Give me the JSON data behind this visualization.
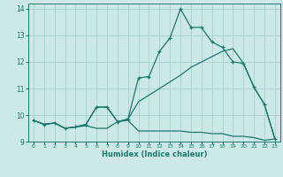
{
  "title": "",
  "xlabel": "Humidex (Indice chaleur)",
  "bg_color": "#cce8e8",
  "grid_color": "#aacfcf",
  "line_color": "#1a7a6e",
  "xlim": [
    -0.5,
    23.5
  ],
  "ylim": [
    9.0,
    14.2
  ],
  "xticks": [
    0,
    1,
    2,
    3,
    4,
    5,
    6,
    7,
    8,
    9,
    10,
    11,
    12,
    13,
    14,
    15,
    16,
    17,
    18,
    19,
    20,
    21,
    22,
    23
  ],
  "yticks": [
    9,
    10,
    11,
    12,
    13,
    14
  ],
  "series1_x": [
    0,
    1,
    2,
    3,
    4,
    5,
    6,
    7,
    8,
    9,
    10,
    11,
    12,
    13,
    14,
    15,
    16,
    17,
    18,
    19,
    20,
    21,
    22,
    23
  ],
  "series1_y": [
    9.8,
    9.65,
    9.7,
    9.5,
    9.55,
    9.6,
    9.5,
    9.5,
    9.75,
    9.8,
    9.4,
    9.4,
    9.4,
    9.4,
    9.4,
    9.35,
    9.35,
    9.3,
    9.3,
    9.2,
    9.2,
    9.15,
    9.05,
    9.1
  ],
  "series2_x": [
    0,
    1,
    2,
    3,
    4,
    5,
    6,
    7,
    8,
    9,
    10,
    11,
    12,
    13,
    14,
    15,
    16,
    17,
    18,
    19,
    20,
    21,
    22,
    23
  ],
  "series2_y": [
    9.8,
    9.65,
    9.7,
    9.5,
    9.55,
    9.65,
    10.3,
    10.3,
    9.75,
    9.85,
    10.5,
    10.75,
    11.0,
    11.25,
    11.5,
    11.8,
    12.0,
    12.2,
    12.4,
    12.5,
    11.95,
    11.05,
    10.4,
    9.1
  ],
  "series3_x": [
    0,
    1,
    2,
    3,
    4,
    5,
    6,
    7,
    8,
    9,
    10,
    11,
    12,
    13,
    14,
    15,
    16,
    17,
    18,
    19,
    20,
    21,
    22,
    23
  ],
  "series3_y": [
    9.8,
    9.65,
    9.7,
    9.5,
    9.55,
    9.65,
    10.3,
    10.3,
    9.75,
    9.85,
    11.4,
    11.45,
    12.4,
    12.9,
    14.0,
    13.3,
    13.3,
    12.75,
    12.55,
    12.0,
    11.95,
    11.05,
    10.4,
    9.1
  ]
}
